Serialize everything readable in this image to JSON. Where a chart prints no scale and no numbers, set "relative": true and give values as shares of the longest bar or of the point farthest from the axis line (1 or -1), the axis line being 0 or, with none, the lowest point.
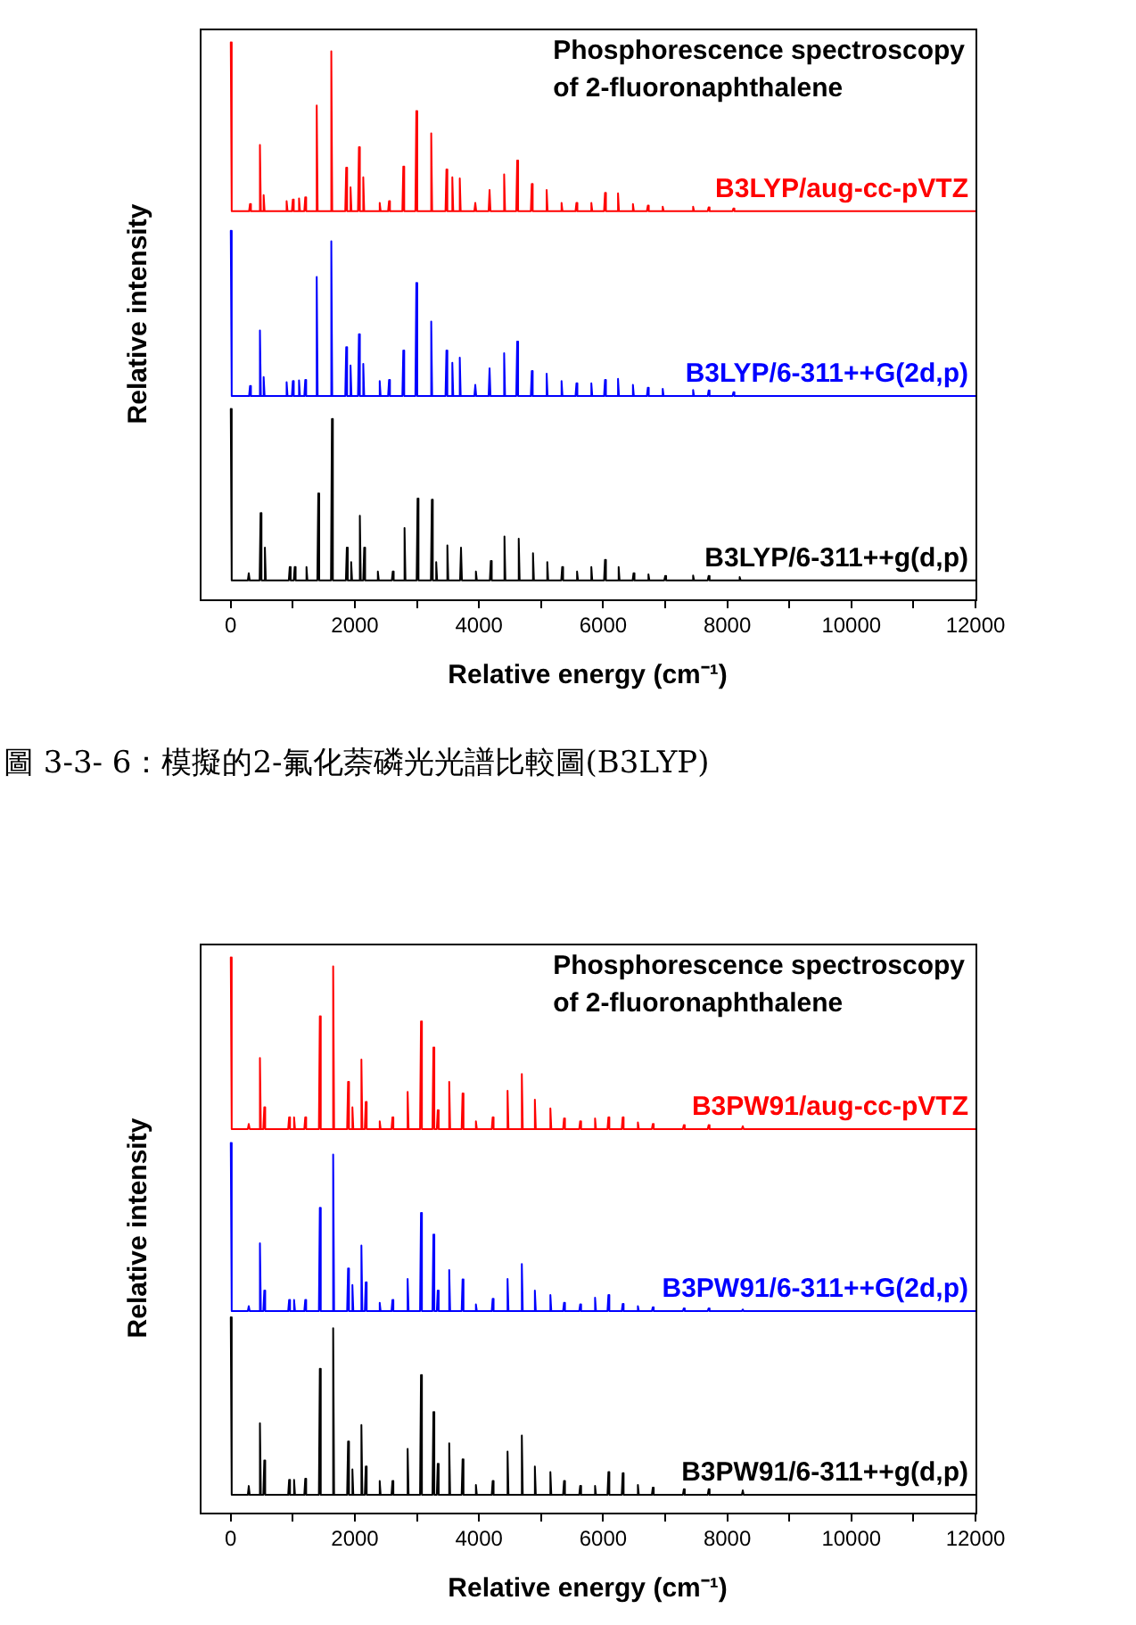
{
  "chart_data": [
    {
      "type": "line",
      "title": "Phosphorescence spectroscopy of 2-fluoronaphthalene",
      "xlabel": "Relative energy (cm⁻¹)",
      "ylabel": "Relative intensity",
      "relative": true,
      "xlim": [
        -500,
        12000
      ],
      "xticks": [
        0,
        {
          "value": 1000,
          "label": null
        },
        2000,
        {
          "value": 3000,
          "label": null
        },
        4000,
        {
          "value": 5000,
          "label": null
        },
        6000,
        {
          "value": 7000,
          "label": null
        },
        8000,
        {
          "value": 9000,
          "label": null
        },
        10000,
        {
          "value": 11000,
          "label": null
        },
        12000
      ],
      "x": [
        0,
        15,
        295,
        310,
        325,
        455,
        470,
        485,
        515,
        530,
        545,
        885,
        900,
        915,
        985,
        1000,
        1015,
        1085,
        1100,
        1115,
        1185,
        1200,
        1215,
        1370,
        1385,
        1400,
        1605,
        1620,
        1635,
        1845,
        1860,
        1875,
        1915,
        1930,
        1945,
        2050,
        2065,
        2080,
        2120,
        2135,
        2150,
        2385,
        2400,
        2415,
        2535,
        2550,
        2565,
        2765,
        2780,
        2795,
        2975,
        2990,
        3005,
        3215,
        3230,
        3245,
        3460,
        3475,
        3490,
        3555,
        3570,
        3585,
        3675,
        3690,
        3705,
        3925,
        3940,
        3955,
        4155,
        4170,
        4185,
        4390,
        4405,
        4420,
        4600,
        4615,
        4630,
        4835,
        4850,
        4865,
        5075,
        5090,
        5105,
        5315,
        5330,
        5345,
        5555,
        5570,
        5585,
        5795,
        5810,
        5825,
        6015,
        6030,
        6045,
        6225,
        6240,
        6255,
        6465,
        6480,
        6495,
        6705,
        6720,
        6735,
        6945,
        6960,
        6975,
        7435,
        7450,
        7465,
        7685,
        7700,
        7715,
        8085,
        8100,
        8115,
        12000
      ],
      "series": [
        {
          "name": "B3LYP/aug-cc-pVTZ",
          "color": "#ff0000",
          "values": [
            1,
            0.697,
            0.697,
            0.71,
            0.697,
            0.697,
            0.816,
            0.697,
            0.697,
            0.726,
            0.697,
            0.697,
            0.715,
            0.697,
            0.697,
            0.718,
            0.697,
            0.697,
            0.72,
            0.697,
            0.697,
            0.722,
            0.697,
            0.697,
            0.887,
            0.697,
            0.697,
            0.984,
            0.697,
            0.697,
            0.775,
            0.697,
            0.697,
            0.74,
            0.697,
            0.697,
            0.812,
            0.697,
            0.697,
            0.758,
            0.697,
            0.697,
            0.712,
            0.697,
            0.697,
            0.715,
            0.697,
            0.697,
            0.777,
            0.697,
            0.697,
            0.877,
            0.697,
            0.697,
            0.837,
            0.697,
            0.697,
            0.772,
            0.697,
            0.697,
            0.758,
            0.697,
            0.697,
            0.756,
            0.697,
            0.697,
            0.712,
            0.697,
            0.697,
            0.735,
            0.697,
            0.697,
            0.763,
            0.697,
            0.697,
            0.788,
            0.697,
            0.697,
            0.746,
            0.697,
            0.697,
            0.735,
            0.697,
            0.697,
            0.712,
            0.697,
            0.697,
            0.712,
            0.697,
            0.697,
            0.712,
            0.697,
            0.697,
            0.73,
            0.697,
            0.697,
            0.729,
            0.697,
            0.697,
            0.71,
            0.697,
            0.697,
            0.707,
            0.697,
            0.697,
            0.705,
            0.697,
            0.697,
            0.705,
            0.697,
            0.697,
            0.704,
            0.697,
            0.697,
            0.702,
            0.697,
            0.697
          ]
        },
        {
          "name": "B3LYP/6-311++G(2d,p)",
          "color": "#0000ff",
          "values": [
            0.662,
            0.365,
            0.365,
            0.383,
            0.365,
            0.365,
            0.483,
            0.365,
            0.365,
            0.399,
            0.365,
            0.365,
            0.39,
            0.365,
            0.365,
            0.392,
            0.365,
            0.365,
            0.393,
            0.365,
            0.365,
            0.394,
            0.365,
            0.365,
            0.579,
            0.365,
            0.365,
            0.643,
            0.365,
            0.365,
            0.453,
            0.365,
            0.365,
            0.42,
            0.365,
            0.365,
            0.476,
            0.365,
            0.365,
            0.423,
            0.365,
            0.365,
            0.392,
            0.365,
            0.365,
            0.394,
            0.365,
            0.365,
            0.447,
            0.365,
            0.365,
            0.568,
            0.365,
            0.365,
            0.499,
            0.365,
            0.365,
            0.447,
            0.365,
            0.365,
            0.425,
            0.365,
            0.365,
            0.434,
            0.365,
            0.365,
            0.385,
            0.365,
            0.365,
            0.415,
            0.365,
            0.365,
            0.442,
            0.365,
            0.365,
            0.463,
            0.365,
            0.365,
            0.41,
            0.365,
            0.365,
            0.405,
            0.365,
            0.365,
            0.392,
            0.365,
            0.365,
            0.388,
            0.365,
            0.365,
            0.388,
            0.365,
            0.365,
            0.394,
            0.365,
            0.365,
            0.396,
            0.365,
            0.365,
            0.385,
            0.365,
            0.365,
            0.38,
            0.365,
            0.365,
            0.378,
            0.365,
            0.365,
            0.376,
            0.365,
            0.365,
            0.375,
            0.365,
            0.365,
            0.372,
            0.365,
            0.365
          ]
        },
        {
          "name": "B3LYP/6-311++g(d,p)",
          "color": "#000000",
          "x": [
            0,
            15,
            275,
            290,
            305,
            465,
            480,
            495,
            535,
            550,
            565,
            935,
            950,
            965,
            1015,
            1030,
            1045,
            1205,
            1220,
            1235,
            1395,
            1410,
            1425,
            1615,
            1630,
            1645,
            1855,
            1870,
            1885,
            1925,
            1940,
            1955,
            2065,
            2080,
            2095,
            2135,
            2150,
            2165,
            2355,
            2370,
            2385,
            2595,
            2610,
            2625,
            2785,
            2800,
            2815,
            2995,
            3010,
            3025,
            3225,
            3240,
            3255,
            3295,
            3310,
            3325,
            3475,
            3490,
            3505,
            3695,
            3710,
            3725,
            3935,
            3950,
            3965,
            4175,
            4190,
            4205,
            4395,
            4410,
            4425,
            4625,
            4640,
            4655,
            4855,
            4870,
            4885,
            5085,
            5100,
            5115,
            5325,
            5340,
            5355,
            5565,
            5580,
            5595,
            5795,
            5810,
            5825,
            6015,
            6030,
            6045,
            6235,
            6250,
            6265,
            6475,
            6490,
            6505,
            6715,
            6730,
            6745,
            6985,
            7000,
            7015,
            7435,
            7450,
            7465,
            7685,
            7700,
            7715,
            8185,
            8200,
            8215,
            12000
          ],
          "values": [
            0.342,
            0.034,
            0.034,
            0.047,
            0.034,
            0.034,
            0.155,
            0.034,
            0.034,
            0.093,
            0.034,
            0.034,
            0.058,
            0.034,
            0.034,
            0.058,
            0.034,
            0.034,
            0.058,
            0.034,
            0.034,
            0.19,
            0.034,
            0.034,
            0.324,
            0.034,
            0.034,
            0.093,
            0.034,
            0.034,
            0.067,
            0.034,
            0.034,
            0.15,
            0.034,
            0.034,
            0.093,
            0.034,
            0.034,
            0.05,
            0.034,
            0.034,
            0.05,
            0.034,
            0.034,
            0.128,
            0.034,
            0.034,
            0.181,
            0.034,
            0.034,
            0.179,
            0.034,
            0.034,
            0.067,
            0.034,
            0.034,
            0.097,
            0.034,
            0.034,
            0.093,
            0.034,
            0.034,
            0.05,
            0.034,
            0.034,
            0.069,
            0.034,
            0.034,
            0.113,
            0.034,
            0.034,
            0.109,
            0.034,
            0.034,
            0.083,
            0.034,
            0.034,
            0.067,
            0.034,
            0.034,
            0.058,
            0.034,
            0.034,
            0.05,
            0.034,
            0.034,
            0.058,
            0.034,
            0.034,
            0.071,
            0.034,
            0.034,
            0.058,
            0.034,
            0.034,
            0.047,
            0.034,
            0.034,
            0.045,
            0.034,
            0.034,
            0.042,
            0.034,
            0.034,
            0.043,
            0.034,
            0.034,
            0.042,
            0.034,
            0.034,
            0.04,
            0.034,
            0.034
          ]
        }
      ],
      "annotations": [
        "圖 3-3- 6：模擬的2-氟化萘磷光光譜比較圖(B3LYP)"
      ]
    },
    {
      "type": "line",
      "title": "Phosphorescence spectroscopy of 2-fluoronaphthalene",
      "xlabel": "Relative energy (cm⁻¹)",
      "ylabel": "Relative intensity",
      "relative": true,
      "xlim": [
        -500,
        12000
      ],
      "xticks": [
        0,
        {
          "value": 1000,
          "label": null
        },
        2000,
        {
          "value": 3000,
          "label": null
        },
        4000,
        {
          "value": 5000,
          "label": null
        },
        6000,
        {
          "value": 7000,
          "label": null
        },
        8000,
        {
          "value": 9000,
          "label": null
        },
        10000,
        {
          "value": 11000,
          "label": null
        },
        12000
      ],
      "x": [
        0,
        15,
        275,
        290,
        305,
        455,
        470,
        485,
        525,
        540,
        555,
        925,
        940,
        955,
        1005,
        1020,
        1035,
        1185,
        1200,
        1215,
        1420,
        1435,
        1450,
        1635,
        1650,
        1665,
        1875,
        1890,
        1905,
        1945,
        1960,
        1975,
        2090,
        2105,
        2120,
        2160,
        2175,
        2190,
        2385,
        2400,
        2415,
        2590,
        2605,
        2620,
        2835,
        2850,
        2865,
        3050,
        3065,
        3080,
        3250,
        3265,
        3280,
        3320,
        3335,
        3350,
        3505,
        3520,
        3535,
        3720,
        3735,
        3750,
        3935,
        3950,
        3965,
        4205,
        4220,
        4235,
        4445,
        4460,
        4475,
        4675,
        4690,
        4705,
        4885,
        4900,
        4915,
        5135,
        5150,
        5165,
        5355,
        5370,
        5385,
        5615,
        5630,
        5645,
        5855,
        5870,
        5885,
        6070,
        6085,
        6100,
        6300,
        6315,
        6330,
        6545,
        6560,
        6575,
        6785,
        6800,
        6815,
        7285,
        7300,
        7315,
        7685,
        7700,
        7715,
        8235,
        8250,
        8265,
        12000
      ],
      "series": [
        {
          "name": "B3PW91/aug-cc-pVTZ",
          "color": "#ff0000",
          "values": [
            1,
            0.691,
            0.691,
            0.7,
            0.691,
            0.691,
            0.819,
            0.691,
            0.691,
            0.73,
            0.691,
            0.691,
            0.712,
            0.691,
            0.691,
            0.712,
            0.691,
            0.691,
            0.712,
            0.691,
            0.691,
            0.894,
            0.691,
            0.691,
            0.984,
            0.691,
            0.691,
            0.776,
            0.691,
            0.691,
            0.73,
            0.691,
            0.691,
            0.816,
            0.691,
            0.691,
            0.74,
            0.691,
            0.691,
            0.705,
            0.691,
            0.691,
            0.712,
            0.691,
            0.691,
            0.758,
            0.691,
            0.691,
            0.885,
            0.691,
            0.691,
            0.838,
            0.691,
            0.691,
            0.725,
            0.691,
            0.691,
            0.776,
            0.691,
            0.691,
            0.755,
            0.691,
            0.691,
            0.705,
            0.691,
            0.691,
            0.712,
            0.691,
            0.691,
            0.76,
            0.691,
            0.691,
            0.79,
            0.691,
            0.691,
            0.744,
            0.691,
            0.691,
            0.728,
            0.691,
            0.691,
            0.71,
            0.691,
            0.691,
            0.705,
            0.691,
            0.691,
            0.71,
            0.691,
            0.691,
            0.712,
            0.691,
            0.691,
            0.712,
            0.691,
            0.691,
            0.703,
            0.691,
            0.691,
            0.7,
            0.691,
            0.691,
            0.698,
            0.691,
            0.691,
            0.698,
            0.691,
            0.691,
            0.696,
            0.691,
            0.691
          ]
        },
        {
          "name": "B3PW91/6-311++G(2d,p)",
          "color": "#0000ff",
          "values": [
            0.666,
            0.363,
            0.363,
            0.372,
            0.363,
            0.363,
            0.485,
            0.363,
            0.363,
            0.4,
            0.363,
            0.363,
            0.383,
            0.363,
            0.363,
            0.383,
            0.363,
            0.363,
            0.383,
            0.363,
            0.363,
            0.549,
            0.363,
            0.363,
            0.645,
            0.363,
            0.363,
            0.44,
            0.363,
            0.363,
            0.41,
            0.363,
            0.363,
            0.481,
            0.363,
            0.363,
            0.415,
            0.363,
            0.363,
            0.378,
            0.363,
            0.363,
            0.383,
            0.363,
            0.363,
            0.421,
            0.363,
            0.363,
            0.54,
            0.363,
            0.363,
            0.501,
            0.363,
            0.363,
            0.4,
            0.363,
            0.363,
            0.437,
            0.363,
            0.363,
            0.42,
            0.363,
            0.363,
            0.375,
            0.363,
            0.363,
            0.385,
            0.363,
            0.363,
            0.421,
            0.363,
            0.363,
            0.448,
            0.363,
            0.363,
            0.4,
            0.363,
            0.363,
            0.392,
            0.363,
            0.363,
            0.378,
            0.363,
            0.363,
            0.375,
            0.363,
            0.363,
            0.387,
            0.363,
            0.363,
            0.392,
            0.363,
            0.363,
            0.376,
            0.363,
            0.363,
            0.372,
            0.363,
            0.363,
            0.37,
            0.363,
            0.363,
            0.368,
            0.363,
            0.363,
            0.368,
            0.363,
            0.363,
            0.366,
            0.363,
            0.363
          ]
        },
        {
          "name": "B3PW91/6-311++g(d,p)",
          "color": "#000000",
          "values": [
            0.352,
            0.032,
            0.032,
            0.048,
            0.032,
            0.032,
            0.161,
            0.032,
            0.032,
            0.094,
            0.032,
            0.032,
            0.059,
            0.032,
            0.032,
            0.059,
            0.032,
            0.032,
            0.061,
            0.032,
            0.032,
            0.259,
            0.032,
            0.032,
            0.332,
            0.032,
            0.032,
            0.128,
            0.032,
            0.032,
            0.078,
            0.032,
            0.032,
            0.158,
            0.032,
            0.032,
            0.083,
            0.032,
            0.032,
            0.057,
            0.032,
            0.032,
            0.057,
            0.032,
            0.032,
            0.115,
            0.032,
            0.032,
            0.248,
            0.032,
            0.032,
            0.181,
            0.032,
            0.032,
            0.088,
            0.032,
            0.032,
            0.125,
            0.032,
            0.032,
            0.096,
            0.032,
            0.032,
            0.05,
            0.032,
            0.032,
            0.057,
            0.032,
            0.032,
            0.11,
            0.032,
            0.032,
            0.139,
            0.032,
            0.032,
            0.083,
            0.032,
            0.032,
            0.073,
            0.032,
            0.032,
            0.057,
            0.032,
            0.032,
            0.048,
            0.032,
            0.032,
            0.048,
            0.032,
            0.032,
            0.073,
            0.032,
            0.032,
            0.071,
            0.032,
            0.032,
            0.05,
            0.032,
            0.032,
            0.045,
            0.032,
            0.032,
            0.042,
            0.032,
            0.032,
            0.042,
            0.032,
            0.032,
            0.04,
            0.032,
            0.032
          ]
        }
      ]
    }
  ]
}
